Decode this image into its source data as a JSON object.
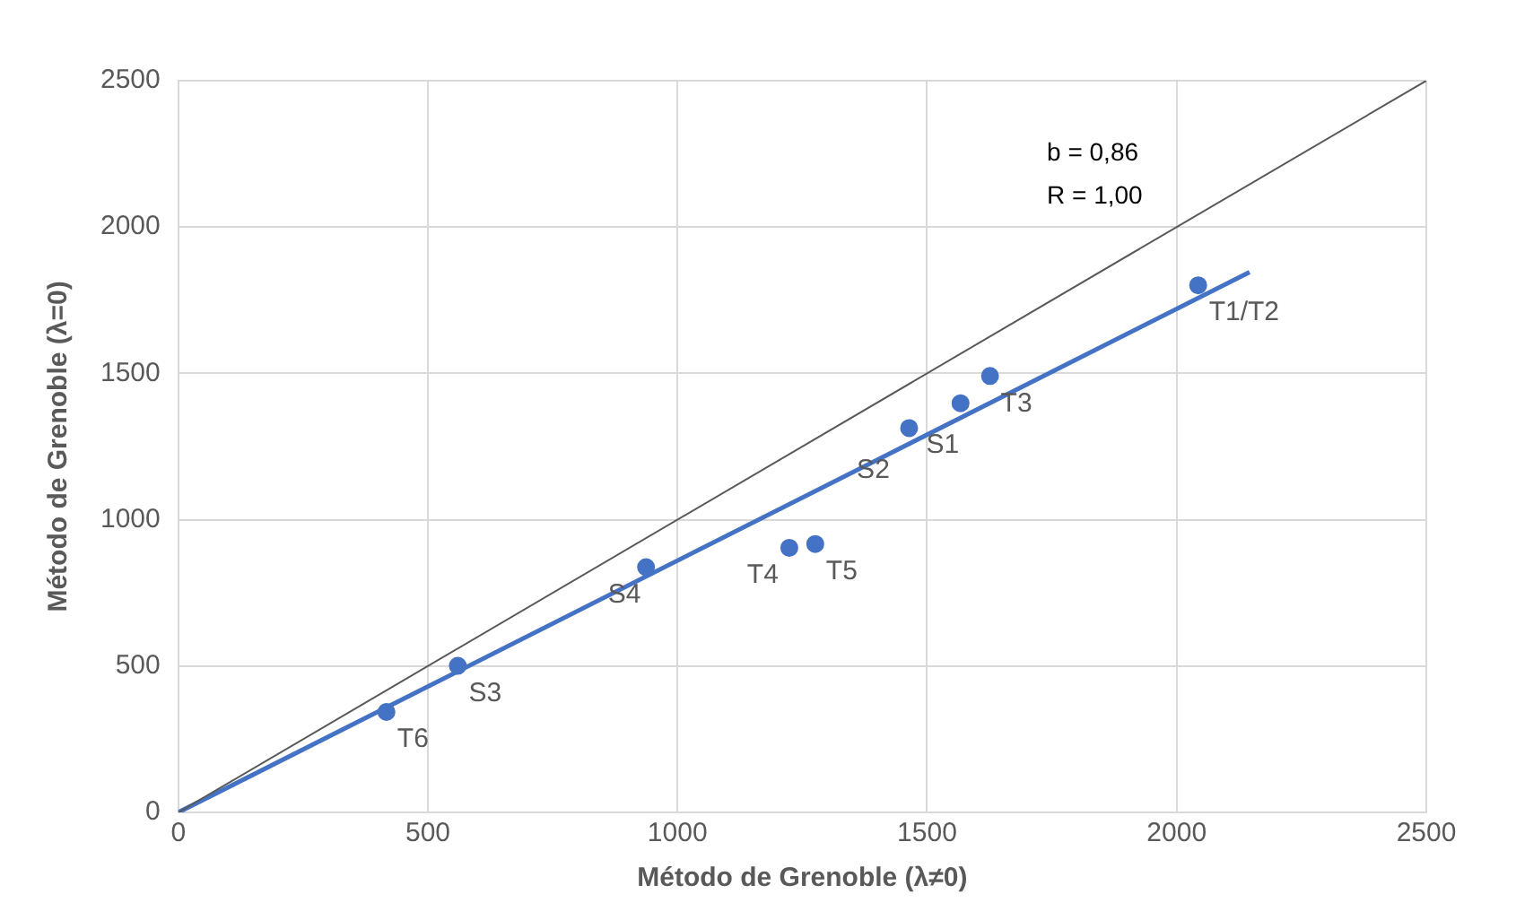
{
  "chart_data": {
    "type": "scatter",
    "xlabel": "Método de Grenoble (λ≠0)",
    "ylabel": "Método de Grenoble (λ=0)",
    "xlim": [
      0,
      2500
    ],
    "xticks": [
      0,
      500,
      1000,
      1500,
      2000,
      2500
    ],
    "ylim": [
      0,
      2500
    ],
    "yticks": [
      0,
      500,
      1000,
      1500,
      2000,
      2500
    ],
    "grid": true,
    "legend": false,
    "series": [
      {
        "type": "line",
        "color": "#595959",
        "marker": "none",
        "x": [
          0,
          2500
        ],
        "values": [
          0,
          2500
        ]
      },
      {
        "type": "line",
        "color": "#4472c4",
        "marker": "none",
        "x": [
          0,
          2146
        ],
        "values": [
          0,
          1846
        ]
      },
      {
        "type": "scatter",
        "color": "#4472c4",
        "marker": "circle",
        "x": [
          417,
          560,
          937,
          1224,
          1276,
          1464,
          1567,
          1626,
          2043
        ],
        "values": [
          343,
          501,
          838,
          904,
          917,
          1313,
          1398,
          1491,
          1801
        ]
      }
    ],
    "annotations": [
      "b = 0,86",
      "R = 1,00",
      {
        "text": "T6",
        "x": 417,
        "y": 343
      },
      {
        "text": "S3",
        "x": 560,
        "y": 501
      },
      {
        "text": "S4",
        "x": 937,
        "y": 838
      },
      {
        "text": "T4",
        "x": 1224,
        "y": 904
      },
      {
        "text": "T5",
        "x": 1276,
        "y": 917
      },
      {
        "text": "S2",
        "x": 1464,
        "y": 1313
      },
      {
        "text": "S1",
        "x": 1567,
        "y": 1398
      },
      {
        "text": "T3",
        "x": 1626,
        "y": 1491
      },
      {
        "text": "T1/T2",
        "x": 2043,
        "y": 1801
      }
    ]
  }
}
